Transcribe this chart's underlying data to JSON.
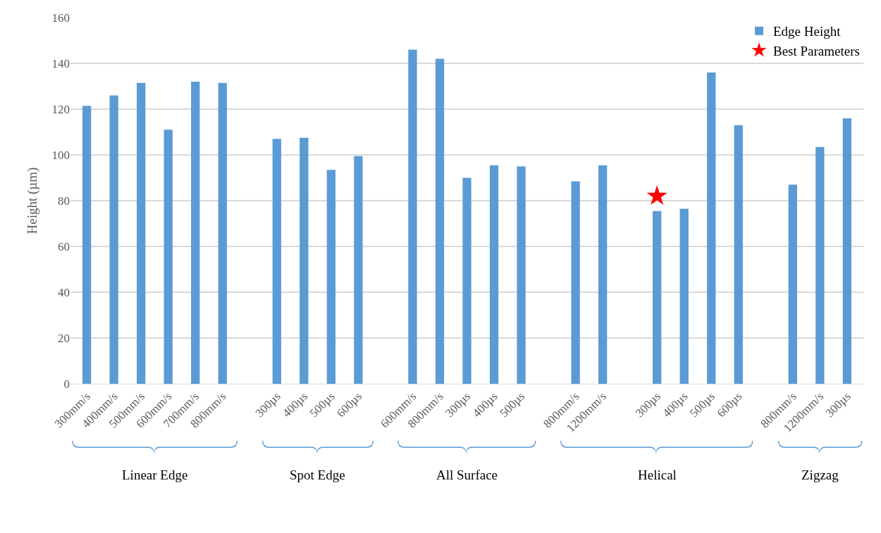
{
  "chart_data": {
    "type": "bar",
    "categories": [
      "300mm/s",
      "400mm/s",
      "500mm/s",
      "600mm/s",
      "700mm/s",
      "800mm/s",
      null,
      "300µs",
      "400µs",
      "500µs",
      "600µs",
      null,
      "600mm/s",
      "800mm/s",
      "300µs",
      "400µs",
      "500µs",
      null,
      "800mm/s",
      "1200mm/s",
      null,
      "300µs",
      "400µs",
      "500µs",
      "600µs",
      null,
      "800mm/s",
      "1200mm/s",
      "300µs"
    ],
    "series": [
      {
        "name": "Edge Height",
        "color": "#5b9bd5",
        "values": [
          121.5,
          126,
          131.5,
          111,
          132,
          131.5,
          null,
          107,
          107.5,
          93.5,
          99.5,
          null,
          146,
          142,
          90,
          95.5,
          95,
          null,
          88.5,
          95.5,
          null,
          75.5,
          76.5,
          136,
          113,
          null,
          87,
          103.5,
          116
        ]
      },
      {
        "name": "Best Parameters",
        "type": "scatter",
        "marker": "star",
        "color": "#ff0000",
        "values": [
          null,
          null,
          null,
          null,
          null,
          null,
          null,
          null,
          null,
          null,
          null,
          null,
          null,
          null,
          null,
          null,
          null,
          null,
          null,
          null,
          null,
          82,
          null,
          null,
          null,
          null,
          null,
          null,
          null
        ]
      }
    ],
    "ylabel": "Height (µm)",
    "ylim": [
      0,
      160
    ],
    "yticks": [
      0,
      20,
      40,
      60,
      80,
      100,
      120,
      140,
      160
    ],
    "grid": "y",
    "legend": "top right",
    "annotations": [
      "Linear Edge",
      "Spot Edge",
      "All Surface",
      "Helical",
      "Zigzag"
    ]
  }
}
